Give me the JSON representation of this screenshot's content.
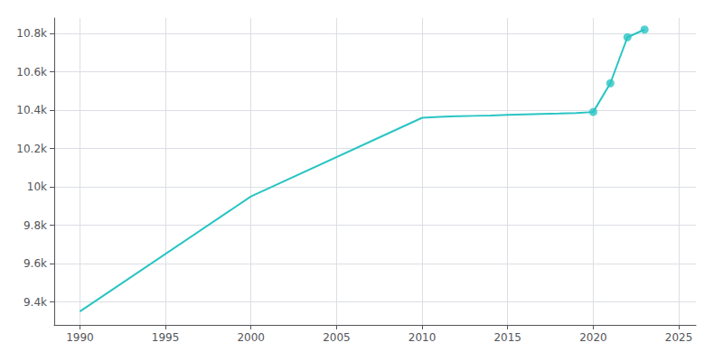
{
  "chart_data": {
    "type": "line",
    "x": [
      1990,
      2000,
      2010,
      2011,
      2012,
      2013,
      2014,
      2015,
      2016,
      2017,
      2018,
      2019,
      2020,
      2021,
      2022,
      2023
    ],
    "series": [
      {
        "type": "line",
        "color": "#29c4c4",
        "values": [
          9350,
          9950,
          10360,
          10365,
          10368,
          10370,
          10372,
          10375,
          10378,
          10380,
          10382,
          10385,
          10390,
          10540,
          10780,
          10820
        ]
      },
      {
        "type": "scatter",
        "color": "#29c4c4",
        "marker": "circle",
        "values": [
          null,
          null,
          null,
          null,
          null,
          null,
          null,
          null,
          null,
          null,
          null,
          null,
          10390,
          10540,
          10780,
          10820
        ]
      }
    ],
    "xlim": [
      1988.5,
      2026
    ],
    "xticks": [
      1990,
      1995,
      2000,
      2005,
      2010,
      2015,
      2020,
      2025
    ],
    "ylim": [
      9280,
      10880
    ],
    "yticks": [
      {
        "value": 9400,
        "label": "9.4k"
      },
      {
        "value": 9600,
        "label": "9.6k"
      },
      {
        "value": 9800,
        "label": "9.8k"
      },
      {
        "value": 10000,
        "label": "10k"
      },
      {
        "value": 10200,
        "label": "10.2k"
      },
      {
        "value": 10400,
        "label": "10.4k"
      },
      {
        "value": 10600,
        "label": "10.6k"
      },
      {
        "value": 10800,
        "label": "10.8k"
      }
    ],
    "grid": true
  }
}
